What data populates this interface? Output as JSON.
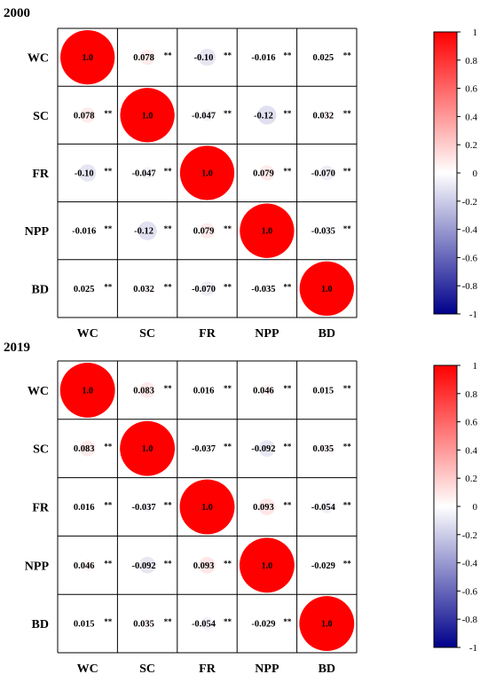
{
  "chart_data": [
    {
      "type": "heatmap",
      "title": "2000",
      "variables": [
        "WC",
        "SC",
        "FR",
        "NPP",
        "BD"
      ],
      "matrix": [
        [
          1.0,
          0.078,
          -0.1,
          -0.016,
          0.025
        ],
        [
          0.078,
          1.0,
          -0.047,
          -0.12,
          0.032
        ],
        [
          -0.1,
          -0.047,
          1.0,
          0.079,
          -0.07
        ],
        [
          -0.016,
          -0.12,
          0.079,
          1.0,
          -0.035
        ],
        [
          0.025,
          0.032,
          -0.07,
          -0.035,
          1.0
        ]
      ],
      "labels": [
        [
          "1.0",
          "0.078",
          "-0.10",
          "-0.016",
          "0.025"
        ],
        [
          "0.078",
          "1.0",
          "-0.047",
          "-0.12",
          "0.032"
        ],
        [
          "-0.10",
          "-0.047",
          "1.0",
          "0.079",
          "-0.070"
        ],
        [
          "-0.016",
          "-0.12",
          "0.079",
          "1.0",
          "-0.035"
        ],
        [
          "0.025",
          "0.032",
          "-0.070",
          "-0.035",
          "1.0"
        ]
      ],
      "significance": "**",
      "colorbar": {
        "min": -1,
        "max": 1,
        "ticks": [
          "1",
          "0.8",
          "0.6",
          "0.4",
          "0.2",
          "0",
          "-0.2",
          "-0.4",
          "-0.6",
          "-0.8",
          "-1"
        ]
      },
      "colors": {
        "positive": "#ff0000",
        "neutral": "#ffffff",
        "negative": "#00008b"
      }
    },
    {
      "type": "heatmap",
      "title": "2019",
      "variables": [
        "WC",
        "SC",
        "FR",
        "NPP",
        "BD"
      ],
      "matrix": [
        [
          1.0,
          0.083,
          0.016,
          0.046,
          0.015
        ],
        [
          0.083,
          1.0,
          -0.037,
          -0.092,
          0.035
        ],
        [
          0.016,
          -0.037,
          1.0,
          0.093,
          -0.054
        ],
        [
          0.046,
          -0.092,
          0.093,
          1.0,
          -0.029
        ],
        [
          0.015,
          0.035,
          -0.054,
          -0.029,
          1.0
        ]
      ],
      "labels": [
        [
          "1.0",
          "0.083",
          "0.016",
          "0.046",
          "0.015"
        ],
        [
          "0.083",
          "1.0",
          "-0.037",
          "-0.092",
          "0.035"
        ],
        [
          "0.016",
          "-0.037",
          "1.0",
          "0.093",
          "-0.054"
        ],
        [
          "0.046",
          "-0.092",
          "0.093",
          "1.0",
          "-0.029"
        ],
        [
          "0.015",
          "0.035",
          "-0.054",
          "-0.029",
          "1.0"
        ]
      ],
      "significance": "**",
      "colorbar": {
        "min": -1,
        "max": 1,
        "ticks": [
          "1",
          "0.8",
          "0.6",
          "0.4",
          "0.2",
          "0",
          "-0.2",
          "-0.4",
          "-0.6",
          "-0.8",
          "-1"
        ]
      },
      "colors": {
        "positive": "#ff0000",
        "neutral": "#ffffff",
        "negative": "#00008b"
      }
    }
  ]
}
